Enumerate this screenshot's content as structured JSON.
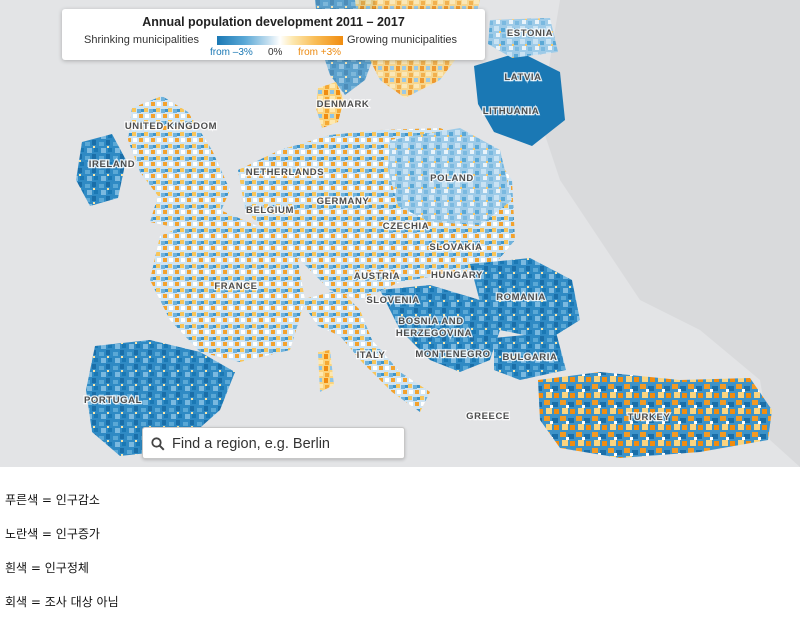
{
  "legend": {
    "title": "Annual population development 2011 – 2017",
    "shrinking_label": "Shrinking municipalities",
    "growing_label": "Growing municipalities",
    "tick_min": "from –3%",
    "tick_zero": "0%",
    "tick_max": "from +3%",
    "colors": {
      "shrink_strong": "#1a78b4",
      "shrink_light": "#8ec4e6",
      "neutral": "#ffffff",
      "grow_light": "#fbd47e",
      "grow_strong": "#f08c10",
      "no_data": "#e3e4e6"
    }
  },
  "map": {
    "countries": [
      {
        "name": "ESTONIA"
      },
      {
        "name": "LATVIA"
      },
      {
        "name": "LITHUANIA"
      },
      {
        "name": "DENMARK"
      },
      {
        "name": "UNITED KINGDOM"
      },
      {
        "name": "IRELAND"
      },
      {
        "name": "NETHERLANDS"
      },
      {
        "name": "POLAND"
      },
      {
        "name": "GERMANY"
      },
      {
        "name": "BELGIUM"
      },
      {
        "name": "CZECHIA"
      },
      {
        "name": "SLOVAKIA"
      },
      {
        "name": "FRANCE"
      },
      {
        "name": "AUSTRIA"
      },
      {
        "name": "HUNGARY"
      },
      {
        "name": "ROMANIA"
      },
      {
        "name": "SLOVENIA"
      },
      {
        "name": "BOSNIA AND"
      },
      {
        "name": "HERZEGOVINA"
      },
      {
        "name": "MONTENEGRO"
      },
      {
        "name": "BULGARIA"
      },
      {
        "name": "ITALY"
      },
      {
        "name": "PORTUGAL"
      },
      {
        "name": "GREECE"
      },
      {
        "name": "TURKEY"
      }
    ]
  },
  "search": {
    "placeholder": "Find a region, e.g. Berlin",
    "icon": "search-icon"
  },
  "notes": [
    "푸른색 = 인구감소",
    "노란색 = 인구증가",
    "흰색 = 인구정체",
    "회색 = 조사 대상 아님"
  ]
}
